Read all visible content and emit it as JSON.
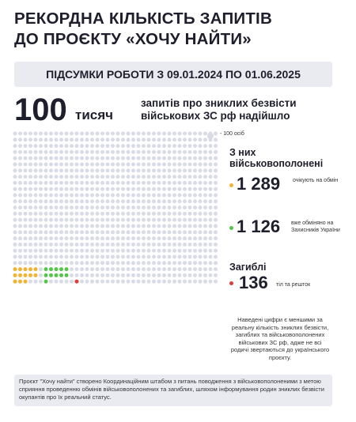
{
  "title": {
    "line1": "РЕКОРДНА КІЛЬКІСТЬ ЗАПИТІВ",
    "line2": "ДО ПРОЄКТУ «ХОЧУ НАЙТИ»"
  },
  "subtitle": "ПІДСУМКИ РОБОТИ З 09.01.2024 ПО 01.06.2025",
  "headline": {
    "number": "100",
    "unit": "тисяч",
    "description": "запитів про зниклих безвісти військових ЗС рф надійшло"
  },
  "legend": {
    "label": "- 100 осіб"
  },
  "colors": {
    "dot_default": "#d9dce6",
    "awaiting_exchange": "#f2b233",
    "exchanged": "#55c44a",
    "dead": "#e23b3b"
  },
  "grid_counts": {
    "total": 1000,
    "awaiting": 13,
    "exchanged": 11,
    "dead": 1
  },
  "pow": {
    "heading": "З них військовополонені",
    "awaiting": {
      "value": "1 289",
      "caption": "очікують на обмін"
    },
    "exchanged": {
      "value": "1 126",
      "caption": "вже обміняно на Захисників України"
    }
  },
  "dead": {
    "heading": "Загиблі",
    "value": "136",
    "caption": "тіл та решток"
  },
  "note": "Наведені цифри є меншими за реальну кількість зниклих безвісти, загиблих та військовополонених військових ЗС рф, адже не всі родичі звертаються до українського проєкту.",
  "footer": "Проєкт \"Хочу найти\" створено Координаційним штабом з питань поводження з військовополоненими з метою сприяння проведенню обмінів військовополонених та загиблих, шляхом інформування родин зниклих безвісти окупантів про їх реальний статус."
}
